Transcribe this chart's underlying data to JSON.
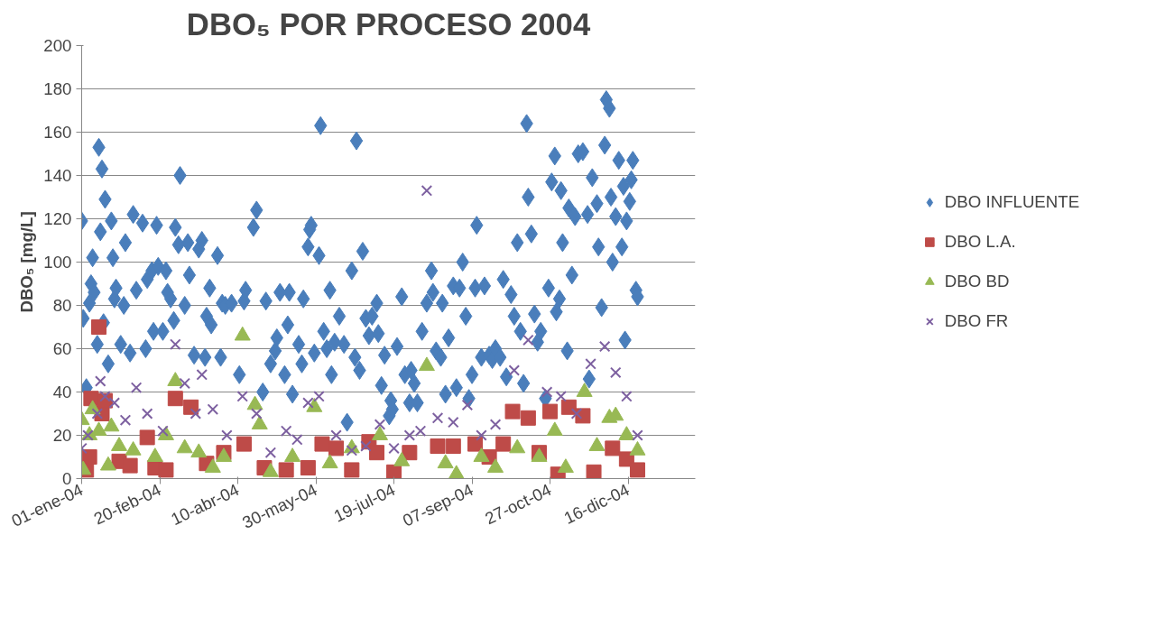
{
  "chart_data": {
    "type": "scatter",
    "title": "DBO₅ POR PROCESO 2004",
    "ylabel": "DBO₅ [mg/L]",
    "xlim": [
      "2004-01-01",
      "2005-01-28"
    ],
    "xticks": [
      {
        "value": "2004-01-01",
        "label": "01-ene-04"
      },
      {
        "value": "2004-02-20",
        "label": "20-feb-04"
      },
      {
        "value": "2004-04-10",
        "label": "10-abr-04"
      },
      {
        "value": "2004-05-30",
        "label": "30-may-04"
      },
      {
        "value": "2004-07-19",
        "label": "19-jul-04"
      },
      {
        "value": "2004-09-07",
        "label": "07-sep-04"
      },
      {
        "value": "2004-10-27",
        "label": "27-oct-04"
      },
      {
        "value": "2004-12-16",
        "label": "16-dic-04"
      }
    ],
    "ylim": [
      0,
      200
    ],
    "yticks": [
      0,
      20,
      40,
      60,
      80,
      100,
      120,
      140,
      160,
      180,
      200
    ],
    "grid": "y",
    "legend": "right",
    "series": [
      {
        "name": "DBO INFLUENTE",
        "color": "#4a7ebb",
        "marker": "diamond",
        "x": [
          "2004-01-01",
          "2004-01-02",
          "2004-01-04",
          "2004-01-06",
          "2004-01-07",
          "2004-01-08",
          "2004-01-09",
          "2004-01-11",
          "2004-01-12",
          "2004-01-13",
          "2004-01-14",
          "2004-01-15",
          "2004-01-16",
          "2004-01-18",
          "2004-01-20",
          "2004-01-21",
          "2004-01-22",
          "2004-01-23",
          "2004-01-26",
          "2004-01-28",
          "2004-01-29",
          "2004-02-01",
          "2004-02-03",
          "2004-02-05",
          "2004-02-09",
          "2004-02-11",
          "2004-02-12",
          "2004-02-15",
          "2004-02-16",
          "2004-02-18",
          "2004-02-19",
          "2004-02-22",
          "2004-02-24",
          "2004-02-25",
          "2004-02-27",
          "2004-02-29",
          "2004-03-01",
          "2004-03-03",
          "2004-03-04",
          "2004-03-07",
          "2004-03-09",
          "2004-03-10",
          "2004-03-13",
          "2004-03-16",
          "2004-03-18",
          "2004-03-20",
          "2004-03-21",
          "2004-03-23",
          "2004-03-24",
          "2004-03-28",
          "2004-03-30",
          "2004-03-31",
          "2004-04-02",
          "2004-04-06",
          "2004-04-11",
          "2004-04-14",
          "2004-04-15",
          "2004-04-20",
          "2004-04-22",
          "2004-04-26",
          "2004-04-28",
          "2004-05-01",
          "2004-05-04",
          "2004-05-05",
          "2004-05-07",
          "2004-05-10",
          "2004-05-12",
          "2004-05-13",
          "2004-05-15",
          "2004-05-19",
          "2004-05-21",
          "2004-05-22",
          "2004-05-25",
          "2004-05-26",
          "2004-05-27",
          "2004-05-29",
          "2004-06-01",
          "2004-06-02",
          "2004-06-04",
          "2004-06-06",
          "2004-06-08",
          "2004-06-09",
          "2004-06-11",
          "2004-06-14",
          "2004-06-17",
          "2004-06-19",
          "2004-06-22",
          "2004-06-24",
          "2004-06-25",
          "2004-06-27",
          "2004-06-29",
          "2004-07-01",
          "2004-07-03",
          "2004-07-05",
          "2004-07-08",
          "2004-07-09",
          "2004-07-11",
          "2004-07-13",
          "2004-07-16",
          "2004-07-17",
          "2004-07-18",
          "2004-07-21",
          "2004-07-24",
          "2004-07-26",
          "2004-07-29",
          "2004-07-30",
          "2004-08-01",
          "2004-08-03",
          "2004-08-06",
          "2004-08-09",
          "2004-08-12",
          "2004-08-13",
          "2004-08-15",
          "2004-08-18",
          "2004-08-19",
          "2004-08-21",
          "2004-08-23",
          "2004-08-26",
          "2004-08-28",
          "2004-08-30",
          "2004-09-01",
          "2004-09-03",
          "2004-09-05",
          "2004-09-07",
          "2004-09-09",
          "2004-09-10",
          "2004-09-13",
          "2004-09-15",
          "2004-09-18",
          "2004-09-20",
          "2004-09-22",
          "2004-09-25",
          "2004-09-27",
          "2004-09-29",
          "2004-10-02",
          "2004-10-04",
          "2004-10-06",
          "2004-10-08",
          "2004-10-10",
          "2004-10-12",
          "2004-10-13",
          "2004-10-15",
          "2004-10-17",
          "2004-10-19",
          "2004-10-21",
          "2004-10-24",
          "2004-10-26",
          "2004-10-28",
          "2004-10-30",
          "2004-10-31",
          "2004-11-02",
          "2004-11-03",
          "2004-11-04",
          "2004-11-07",
          "2004-11-08",
          "2004-11-10",
          "2004-11-12",
          "2004-11-14",
          "2004-11-17",
          "2004-11-20",
          "2004-11-21",
          "2004-11-23",
          "2004-11-26",
          "2004-11-27",
          "2004-11-29",
          "2004-12-01",
          "2004-12-02",
          "2004-12-04",
          "2004-12-05",
          "2004-12-06",
          "2004-12-08",
          "2004-12-10",
          "2004-12-12",
          "2004-12-13",
          "2004-12-14",
          "2004-12-15",
          "2004-12-17",
          "2004-12-18",
          "2004-12-19",
          "2004-12-21",
          "2004-12-22"
        ],
        "values": [
          119,
          74,
          42,
          81,
          90,
          102,
          86,
          62,
          153,
          114,
          143,
          72,
          129,
          53,
          119,
          102,
          83,
          88,
          62,
          80,
          109,
          58,
          122,
          87,
          118,
          60,
          92,
          96,
          68,
          117,
          98,
          68,
          96,
          86,
          83,
          73,
          116,
          108,
          140,
          80,
          109,
          94,
          57,
          106,
          110,
          56,
          75,
          88,
          71,
          103,
          56,
          81,
          80,
          81,
          48,
          82,
          87,
          116,
          124,
          40,
          82,
          53,
          59,
          65,
          86,
          48,
          71,
          86,
          39,
          62,
          53,
          83,
          107,
          115,
          117,
          58,
          103,
          163,
          68,
          60,
          87,
          48,
          63,
          75,
          62,
          26,
          96,
          56,
          156,
          50,
          105,
          74,
          66,
          75,
          81,
          67,
          43,
          57,
          29,
          36,
          32,
          61,
          84,
          48,
          35,
          50,
          44,
          35,
          68,
          81,
          96,
          86,
          59,
          56,
          81,
          39,
          65,
          89,
          42,
          88,
          100,
          75,
          37,
          48,
          88,
          117,
          56,
          89,
          57,
          55,
          60,
          56,
          92,
          47,
          85,
          75,
          109,
          68,
          44,
          164,
          130,
          113,
          76,
          63,
          68,
          37,
          88,
          137,
          149,
          77,
          83,
          133,
          109,
          59,
          125,
          94,
          121,
          150,
          151,
          122,
          46,
          139,
          127,
          107,
          79,
          154,
          175,
          171,
          130,
          100,
          121,
          147,
          107,
          135,
          64,
          119,
          128,
          138,
          147,
          87,
          84
        ]
      },
      {
        "name": "DBO L.A.",
        "color": "#be4b48",
        "marker": "square",
        "x": [
          "2004-01-04",
          "2004-01-06",
          "2004-01-07",
          "2004-01-12",
          "2004-01-14",
          "2004-01-16",
          "2004-01-20",
          "2004-01-25",
          "2004-02-01",
          "2004-02-12",
          "2004-02-17",
          "2004-02-24",
          "2004-03-01",
          "2004-03-11",
          "2004-03-21",
          "2004-04-01",
          "2004-04-14",
          "2004-04-27",
          "2004-05-11",
          "2004-05-25",
          "2004-06-03",
          "2004-06-12",
          "2004-06-22",
          "2004-07-03",
          "2004-07-08",
          "2004-07-19",
          "2004-07-29",
          "2004-08-16",
          "2004-08-26",
          "2004-09-09",
          "2004-09-18",
          "2004-09-27",
          "2004-10-03",
          "2004-10-13",
          "2004-10-20",
          "2004-10-27",
          "2004-11-01",
          "2004-11-08",
          "2004-11-17",
          "2004-11-24",
          "2004-12-06",
          "2004-12-15",
          "2004-12-22"
        ],
        "values": [
          4,
          10,
          37,
          70,
          30,
          36,
          null,
          8,
          6,
          19,
          5,
          4,
          37,
          33,
          7,
          12,
          16,
          5,
          4,
          5,
          16,
          14,
          4,
          17,
          12,
          3,
          12,
          15,
          15,
          16,
          10,
          16,
          31,
          28,
          12,
          31,
          2,
          33,
          29,
          3,
          14,
          9,
          4
        ]
      },
      {
        "name": "DBO BD",
        "color": "#98b954",
        "marker": "triangle",
        "x": [
          "2004-01-01",
          "2004-01-02",
          "2004-01-06",
          "2004-01-08",
          "2004-01-12",
          "2004-01-18",
          "2004-01-20",
          "2004-01-25",
          "2004-02-03",
          "2004-02-17",
          "2004-02-24",
          "2004-03-01",
          "2004-03-07",
          "2004-03-16",
          "2004-03-25",
          "2004-04-01",
          "2004-04-13",
          "2004-04-21",
          "2004-04-24",
          "2004-05-01",
          "2004-05-15",
          "2004-05-29",
          "2004-06-08",
          "2004-06-22",
          "2004-07-10",
          "2004-07-24",
          "2004-08-09",
          "2004-08-21",
          "2004-08-28",
          "2004-09-13",
          "2004-09-22",
          "2004-10-06",
          "2004-10-20",
          "2004-10-30",
          "2004-11-06",
          "2004-11-18",
          "2004-11-26",
          "2004-12-04",
          "2004-12-08",
          "2004-12-15",
          "2004-12-22"
        ],
        "values": [
          27,
          4,
          20,
          32,
          22,
          6,
          24,
          15,
          13,
          10,
          20,
          45,
          14,
          12,
          5,
          10,
          66,
          34,
          25,
          3,
          10,
          33,
          7,
          14,
          20,
          8,
          52,
          7,
          2,
          10,
          5,
          14,
          10,
          22,
          5,
          40,
          15,
          28,
          29,
          20,
          13
        ]
      },
      {
        "name": "DBO FR",
        "color": "#7d60a0",
        "marker": "cross",
        "x": [
          "2004-01-01",
          "2004-01-05",
          "2004-01-11",
          "2004-01-13",
          "2004-01-16",
          "2004-01-22",
          "2004-01-29",
          "2004-02-05",
          "2004-02-12",
          "2004-02-22",
          "2004-03-01",
          "2004-03-07",
          "2004-03-14",
          "2004-03-18",
          "2004-03-25",
          "2004-04-03",
          "2004-04-13",
          "2004-04-22",
          "2004-05-01",
          "2004-05-11",
          "2004-05-18",
          "2004-05-25",
          "2004-06-01",
          "2004-06-12",
          "2004-06-22",
          "2004-07-01",
          "2004-07-10",
          "2004-07-19",
          "2004-07-29",
          "2004-08-05",
          "2004-08-09",
          "2004-08-16",
          "2004-08-26",
          "2004-09-04",
          "2004-09-13",
          "2004-09-22",
          "2004-10-04",
          "2004-10-13",
          "2004-10-25",
          "2004-11-03",
          "2004-11-13",
          "2004-11-22",
          "2004-12-01",
          "2004-12-08",
          "2004-12-15",
          "2004-12-22"
        ],
        "values": [
          14,
          20,
          30,
          45,
          38,
          35,
          27,
          42,
          30,
          22,
          62,
          44,
          30,
          48,
          32,
          20,
          38,
          30,
          12,
          22,
          18,
          35,
          38,
          20,
          13,
          15,
          25,
          14,
          20,
          22,
          133,
          28,
          26,
          34,
          20,
          25,
          50,
          64,
          40,
          38,
          30,
          53,
          61,
          49,
          38,
          20
        ]
      }
    ]
  }
}
